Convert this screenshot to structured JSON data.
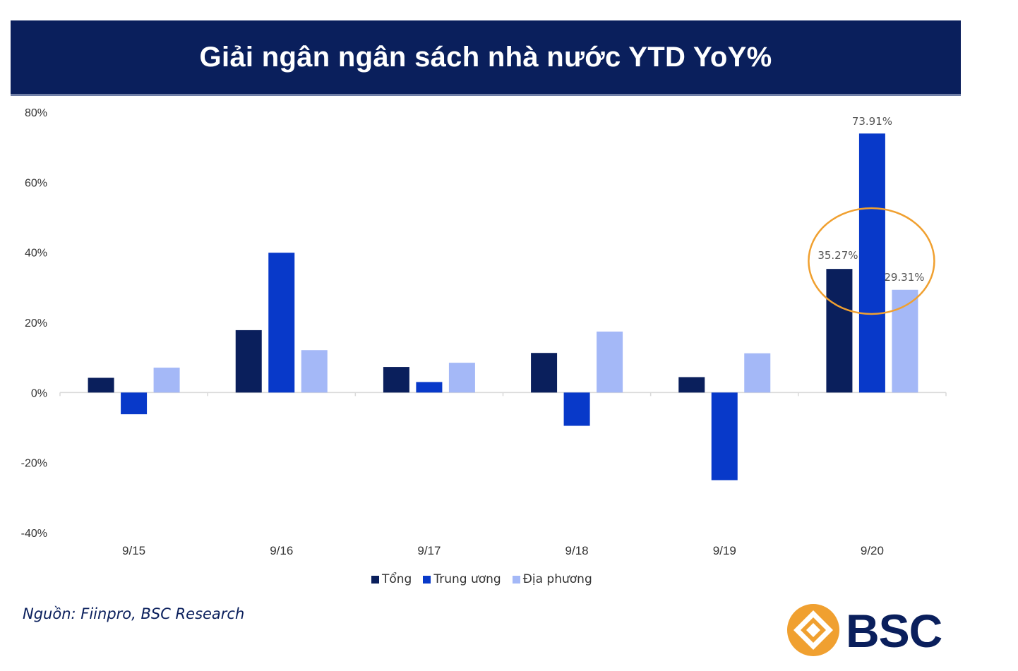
{
  "title": "Giải ngân ngân sách nhà nước YTD YoY%",
  "source": "Nguồn: Fiinpro, BSC Research",
  "logo": {
    "text": "BSC",
    "icon": "bsc-diamond-logo-icon"
  },
  "colors": {
    "title_bg": "#0a1f5c",
    "tong": "#0a1f5c",
    "trung_uong": "#0839c9",
    "dia_phuong": "#a4b8f7",
    "highlight_circle": "#f0a030",
    "logo_orange": "#f0a030",
    "logo_navy": "#0a1f5c"
  },
  "chart_data": {
    "type": "bar",
    "title": "Giải ngân ngân sách nhà nước YTD YoY%",
    "categories": [
      "9/15",
      "9/16",
      "9/17",
      "9/18",
      "9/19",
      "9/20"
    ],
    "series": [
      {
        "name": "Tổng",
        "values": [
          4.2,
          17.8,
          7.3,
          11.3,
          4.4,
          35.27
        ]
      },
      {
        "name": "Trung ương",
        "values": [
          -6.2,
          39.9,
          3.0,
          -9.5,
          -25.0,
          73.91
        ]
      },
      {
        "name": "Địa phương",
        "values": [
          7.1,
          12.1,
          8.5,
          17.4,
          11.2,
          29.31
        ]
      }
    ],
    "data_labels": [
      {
        "series": 0,
        "category": 5,
        "text": "35.27%"
      },
      {
        "series": 1,
        "category": 5,
        "text": "73.91%"
      },
      {
        "series": 2,
        "category": 5,
        "text": "29.31%"
      }
    ],
    "yticks": [
      -40,
      -20,
      0,
      20,
      40,
      60,
      80
    ],
    "ytick_labels": [
      "-40%",
      "-20%",
      "0%",
      "20%",
      "40%",
      "60%",
      "80%"
    ],
    "ylim": [
      -40,
      80
    ],
    "xlabel": "",
    "ylabel": "",
    "grid": false,
    "legend_position": "bottom",
    "annotation": "highlight-circle around 9/20"
  }
}
